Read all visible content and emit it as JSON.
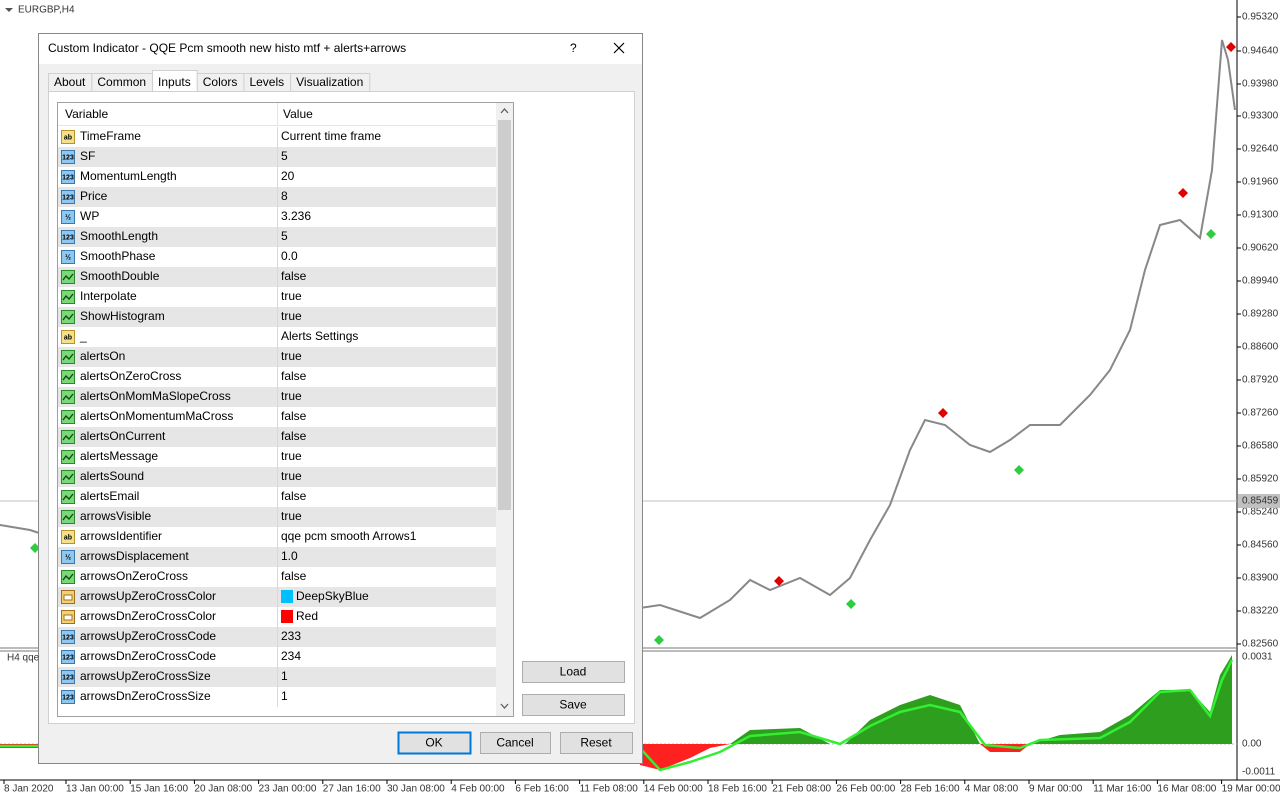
{
  "chart": {
    "symbol": "EURGBP,H4",
    "price_labels": [
      "0.95320",
      "0.94640",
      "0.93980",
      "0.93300",
      "0.92640",
      "0.91960",
      "0.91300",
      "0.90620",
      "0.89940",
      "0.89280",
      "0.88600",
      "0.87920",
      "0.87260",
      "0.86580",
      "0.85920",
      "0.85240",
      "0.84560",
      "0.83900",
      "0.83220",
      "0.82560"
    ],
    "current_price": "0.85459",
    "indicator_label": "H4  qqe",
    "indicator_labels": [
      "0.0031",
      "0.00",
      "-0.0011"
    ],
    "date_labels": [
      "8 Jan 2020",
      "13 Jan 00:00",
      "15 Jan 16:00",
      "20 Jan 08:00",
      "23 Jan 00:00",
      "27 Jan 16:00",
      "30 Jan 08:00",
      "4 Feb 00:00",
      "6 Feb 16:00",
      "11 Feb 08:00",
      "14 Feb 00:00",
      "18 Feb 16:00",
      "21 Feb 08:00",
      "26 Feb 00:00",
      "28 Feb 16:00",
      "4 Mar 08:00",
      "9 Mar 00:00",
      "11 Mar 16:00",
      "16 Mar 08:00",
      "19 Mar 00:00"
    ]
  },
  "dialog": {
    "title": "Custom Indicator - QQE Pcm smooth new histo mtf + alerts+arrows",
    "help": "?",
    "tabs": [
      "About",
      "Common",
      "Inputs",
      "Colors",
      "Levels",
      "Visualization"
    ],
    "active_tab": 2,
    "columns": [
      "Variable",
      "Value"
    ],
    "rows": [
      {
        "icon": "ab",
        "name": "TimeFrame",
        "value": "Current time frame"
      },
      {
        "icon": "123",
        "name": "SF",
        "value": "5"
      },
      {
        "icon": "123",
        "name": "MomentumLength",
        "value": "20"
      },
      {
        "icon": "123",
        "name": "Price",
        "value": "8"
      },
      {
        "icon": "½",
        "name": "WP",
        "value": "3.236"
      },
      {
        "icon": "123",
        "name": "SmoothLength",
        "value": "5"
      },
      {
        "icon": "½",
        "name": "SmoothPhase",
        "value": "0.0"
      },
      {
        "name": "SmoothDouble",
        "value": "false"
      },
      {
        "name": "Interpolate",
        "value": "true"
      },
      {
        "name": "ShowHistogram",
        "value": "true"
      },
      {
        "icon": "ab",
        "name": "_",
        "value": "Alerts Settings"
      },
      {
        "name": "alertsOn",
        "value": "true"
      },
      {
        "name": "alertsOnZeroCross",
        "value": "false"
      },
      {
        "name": "alertsOnMomMaSlopeCross",
        "value": "true"
      },
      {
        "name": "alertsOnMomentumMaCross",
        "value": "false"
      },
      {
        "name": "alertsOnCurrent",
        "value": "false"
      },
      {
        "name": "alertsMessage",
        "value": "true"
      },
      {
        "name": "alertsSound",
        "value": "true"
      },
      {
        "name": "alertsEmail",
        "value": "false"
      },
      {
        "name": "arrowsVisible",
        "value": "true"
      },
      {
        "icon": "ab",
        "name": "arrowsIdentifier",
        "value": "qqe pcm smooth Arrows1"
      },
      {
        "icon": "½",
        "name": "arrowsDisplacement",
        "value": "1.0"
      },
      {
        "name": "arrowsOnZeroCross",
        "value": "false"
      },
      {
        "name": "arrowsUpZeroCrossColor",
        "value": "DeepSkyBlue",
        "swatch": "#00bfff"
      },
      {
        "name": "arrowsDnZeroCrossColor",
        "value": "Red",
        "swatch": "#ff0000"
      },
      {
        "icon": "123",
        "name": "arrowsUpZeroCrossCode",
        "value": "233"
      },
      {
        "icon": "123",
        "name": "arrowsDnZeroCrossCode",
        "value": "234"
      },
      {
        "icon": "123",
        "name": "arrowsUpZeroCrossSize",
        "value": "1"
      },
      {
        "icon": "123",
        "name": "arrowsDnZeroCrossSize",
        "value": "1"
      }
    ],
    "side_buttons": [
      "Load",
      "Save"
    ],
    "buttons": [
      "OK",
      "Cancel",
      "Reset"
    ]
  }
}
